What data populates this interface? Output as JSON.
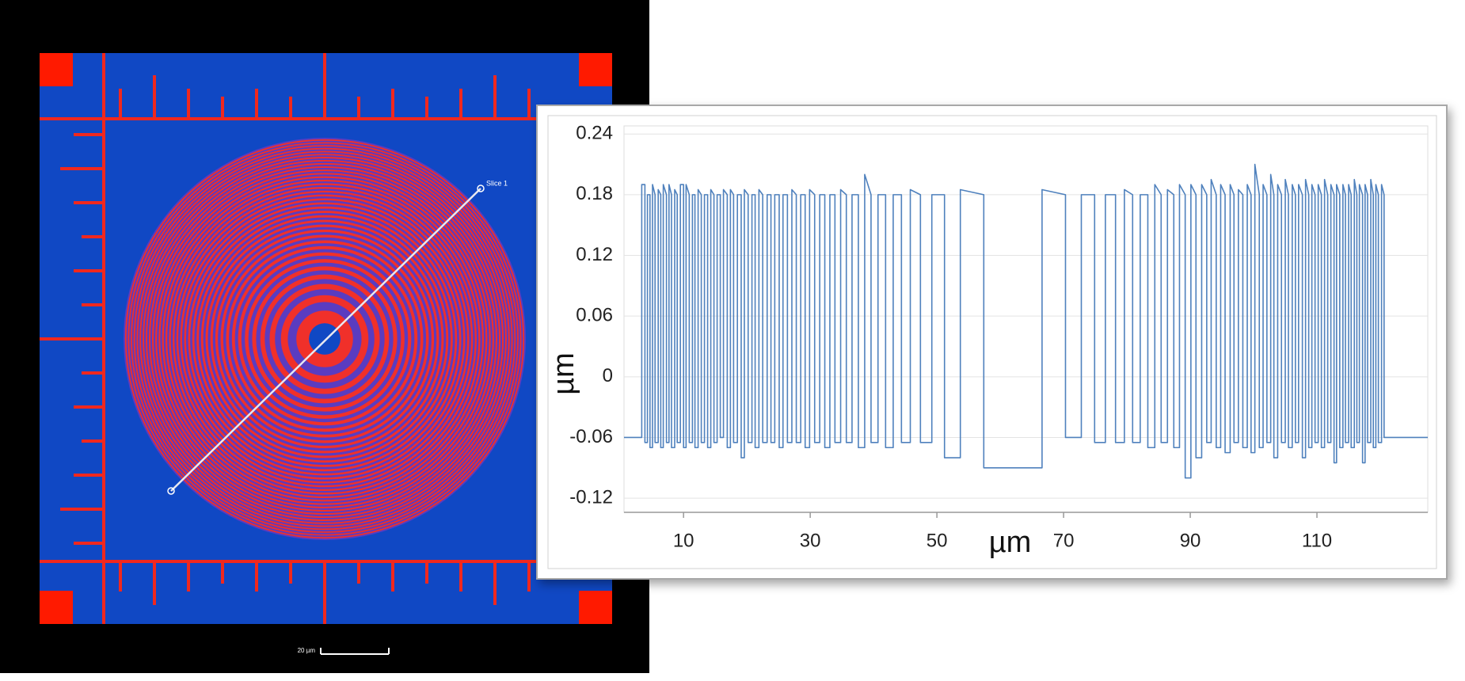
{
  "chart_data": {
    "type": "line",
    "x_label": "µm",
    "y_label": "µm",
    "color": "#4f81bd",
    "grid": true,
    "xlim": [
      0.6,
      127.5
    ],
    "ylim": [
      -0.134,
      0.248
    ],
    "xticks": [
      10,
      30,
      50,
      70,
      90,
      110
    ],
    "yticks": [
      -0.12,
      -0.06,
      0,
      0.06,
      0.12,
      0.18,
      0.24
    ],
    "x": [
      0.6,
      3.4,
      3.4,
      3.9,
      3.9,
      4.3,
      4.3,
      4.7,
      4.7,
      5.1,
      5.1,
      5.5,
      5.5,
      6.0,
      6.0,
      6.4,
      6.4,
      6.8,
      6.8,
      7.3,
      7.3,
      7.7,
      7.7,
      8.1,
      8.1,
      8.6,
      8.6,
      9.0,
      9.0,
      9.5,
      9.5,
      10.0,
      10.0,
      10.4,
      10.4,
      10.9,
      10.9,
      11.4,
      11.4,
      11.8,
      11.8,
      12.3,
      12.3,
      12.8,
      12.8,
      13.3,
      13.3,
      13.8,
      13.8,
      14.3,
      14.3,
      14.8,
      14.8,
      15.3,
      15.3,
      15.8,
      15.8,
      16.3,
      16.3,
      16.9,
      16.9,
      17.4,
      17.4,
      17.9,
      17.9,
      18.5,
      18.5,
      19.1,
      19.1,
      19.6,
      19.6,
      20.2,
      20.2,
      20.8,
      20.8,
      21.3,
      21.3,
      21.9,
      21.9,
      22.5,
      22.5,
      23.2,
      23.2,
      23.8,
      23.8,
      24.4,
      24.4,
      25.1,
      25.1,
      25.7,
      25.7,
      26.4,
      26.4,
      27.1,
      27.1,
      27.8,
      27.8,
      28.5,
      28.5,
      29.2,
      29.2,
      29.9,
      29.9,
      30.7,
      30.7,
      31.5,
      31.5,
      32.3,
      32.3,
      33.1,
      33.1,
      33.9,
      33.9,
      34.8,
      34.8,
      35.7,
      35.7,
      36.6,
      36.6,
      37.6,
      37.6,
      38.6,
      38.6,
      39.6,
      39.6,
      40.7,
      40.7,
      41.9,
      41.9,
      43.1,
      43.1,
      44.4,
      44.4,
      45.8,
      45.8,
      47.4,
      47.4,
      49.2,
      49.2,
      51.2,
      51.2,
      53.7,
      53.7,
      57.4,
      57.4,
      66.6,
      66.6,
      70.3,
      70.3,
      72.8,
      72.8,
      74.9,
      74.9,
      76.6,
      76.6,
      78.2,
      78.2,
      79.6,
      79.6,
      80.9,
      80.9,
      82.1,
      82.1,
      83.3,
      83.3,
      84.4,
      84.4,
      85.4,
      85.4,
      86.4,
      86.4,
      87.4,
      87.4,
      88.3,
      88.3,
      89.2,
      89.2,
      90.1,
      90.1,
      90.9,
      90.9,
      91.8,
      91.8,
      92.6,
      92.6,
      93.3,
      93.3,
      94.1,
      94.1,
      94.8,
      94.8,
      95.5,
      95.5,
      96.3,
      96.3,
      96.9,
      96.9,
      97.6,
      97.6,
      98.3,
      98.3,
      99.0,
      99.0,
      99.6,
      99.6,
      100.2,
      100.2,
      100.9,
      100.9,
      101.5,
      101.5,
      102.1,
      102.1,
      102.7,
      102.7,
      103.2,
      103.2,
      103.8,
      103.8,
      104.4,
      104.4,
      105.0,
      105.0,
      105.5,
      105.5,
      106.1,
      106.1,
      106.6,
      106.6,
      107.1,
      107.1,
      107.7,
      107.7,
      108.2,
      108.2,
      108.7,
      108.7,
      109.2,
      109.2,
      109.7,
      109.7,
      110.2,
      110.2,
      110.7,
      110.7,
      111.2,
      111.2,
      111.7,
      111.7,
      112.2,
      112.2,
      112.7,
      112.7,
      113.1,
      113.1,
      113.6,
      113.6,
      114.1,
      114.1,
      114.5,
      114.5,
      115.0,
      115.0,
      115.4,
      115.4,
      115.9,
      115.9,
      116.3,
      116.3,
      116.7,
      116.7,
      117.2,
      117.2,
      117.6,
      117.6,
      118.0,
      118.0,
      118.5,
      118.5,
      118.9,
      118.9,
      119.3,
      119.3,
      119.7,
      119.7,
      120.2,
      120.2,
      120.6,
      120.6,
      127.5
    ],
    "values": [
      -0.06,
      -0.06,
      0.19,
      0.19,
      -0.065,
      -0.065,
      0.18,
      0.18,
      -0.07,
      -0.07,
      0.19,
      0.18,
      -0.065,
      -0.065,
      0.185,
      0.18,
      -0.07,
      -0.07,
      0.19,
      0.18,
      -0.065,
      -0.065,
      0.19,
      0.18,
      -0.07,
      -0.07,
      0.185,
      0.18,
      -0.065,
      -0.065,
      0.19,
      0.19,
      -0.07,
      -0.07,
      0.19,
      0.18,
      -0.065,
      -0.065,
      0.18,
      0.18,
      -0.07,
      -0.07,
      0.185,
      0.18,
      -0.065,
      -0.065,
      0.18,
      0.18,
      -0.07,
      -0.07,
      0.185,
      0.18,
      -0.065,
      -0.065,
      0.18,
      0.18,
      -0.06,
      -0.06,
      0.185,
      0.18,
      -0.07,
      -0.07,
      0.185,
      0.18,
      -0.065,
      -0.065,
      0.18,
      0.18,
      -0.08,
      -0.08,
      0.185,
      0.18,
      -0.065,
      -0.065,
      0.18,
      0.18,
      -0.07,
      -0.07,
      0.185,
      0.18,
      -0.065,
      -0.065,
      0.18,
      0.18,
      -0.065,
      -0.065,
      0.18,
      0.18,
      -0.07,
      -0.07,
      0.18,
      0.18,
      -0.065,
      -0.065,
      0.185,
      0.18,
      -0.065,
      -0.065,
      0.18,
      0.18,
      -0.07,
      -0.07,
      0.185,
      0.18,
      -0.065,
      -0.065,
      0.18,
      0.18,
      -0.07,
      -0.07,
      0.18,
      0.18,
      -0.065,
      -0.065,
      0.185,
      0.18,
      -0.065,
      -0.065,
      0.18,
      0.18,
      -0.07,
      -0.07,
      0.2,
      0.18,
      -0.065,
      -0.065,
      0.18,
      0.18,
      -0.07,
      -0.07,
      0.18,
      0.18,
      -0.065,
      -0.065,
      0.185,
      0.18,
      -0.065,
      -0.065,
      0.18,
      0.18,
      -0.08,
      -0.08,
      0.185,
      0.18,
      -0.09,
      -0.09,
      0.185,
      0.18,
      -0.06,
      -0.06,
      0.18,
      0.18,
      -0.065,
      -0.065,
      0.18,
      0.18,
      -0.065,
      -0.065,
      0.185,
      0.18,
      -0.065,
      -0.065,
      0.18,
      0.18,
      -0.07,
      -0.07,
      0.19,
      0.18,
      -0.065,
      -0.065,
      0.185,
      0.18,
      -0.07,
      -0.07,
      0.19,
      0.18,
      -0.1,
      -0.1,
      0.19,
      0.18,
      -0.08,
      -0.08,
      0.19,
      0.18,
      -0.065,
      -0.065,
      0.195,
      0.18,
      -0.07,
      -0.07,
      0.19,
      0.18,
      -0.075,
      -0.075,
      0.19,
      0.18,
      -0.065,
      -0.065,
      0.185,
      0.18,
      -0.07,
      -0.07,
      0.19,
      0.18,
      -0.075,
      -0.075,
      0.21,
      0.18,
      -0.07,
      -0.07,
      0.19,
      0.18,
      -0.065,
      -0.065,
      0.2,
      0.18,
      -0.08,
      -0.08,
      0.19,
      0.18,
      -0.065,
      -0.065,
      0.195,
      0.18,
      -0.07,
      -0.07,
      0.19,
      0.18,
      -0.065,
      -0.065,
      0.19,
      0.18,
      -0.08,
      -0.08,
      0.195,
      0.18,
      -0.07,
      -0.07,
      0.19,
      0.18,
      -0.065,
      -0.065,
      0.19,
      0.18,
      -0.07,
      -0.07,
      0.195,
      0.18,
      -0.065,
      -0.065,
      0.19,
      0.18,
      -0.085,
      -0.085,
      0.19,
      0.18,
      -0.07,
      -0.07,
      0.19,
      0.18,
      -0.065,
      -0.065,
      0.19,
      0.18,
      -0.07,
      -0.07,
      0.195,
      0.18,
      -0.065,
      -0.065,
      0.19,
      0.18,
      -0.085,
      -0.085,
      0.19,
      0.18,
      -0.065,
      -0.065,
      0.195,
      0.18,
      -0.07,
      -0.07,
      0.19,
      0.18,
      -0.065,
      -0.065,
      0.19,
      0.18,
      -0.06,
      -0.06
    ]
  },
  "image": {
    "slice_label": "Slice 1",
    "scale_bar_label": "20 µm"
  }
}
